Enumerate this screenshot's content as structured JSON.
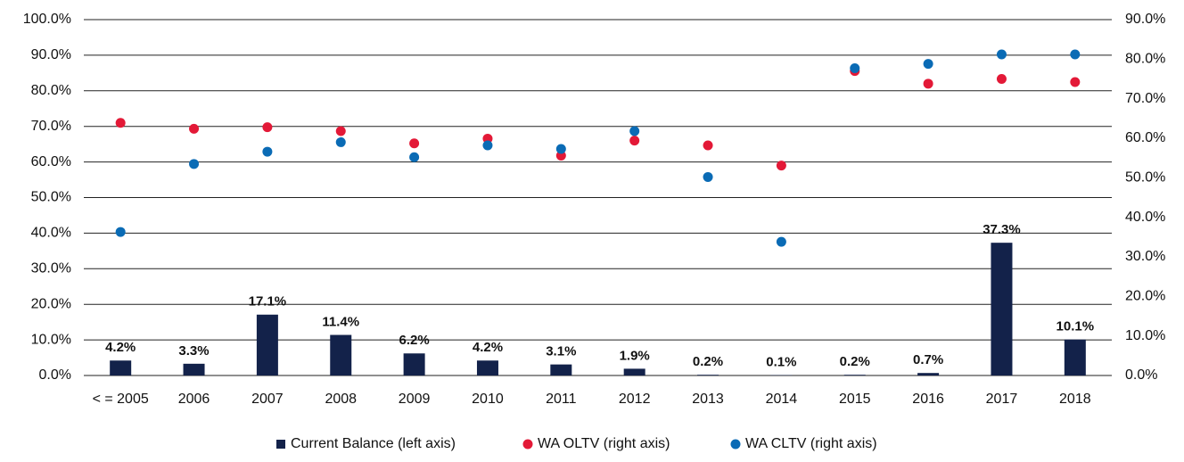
{
  "chart_data": {
    "type": "bar_scatter",
    "categories": [
      "< = 2005",
      "2006",
      "2007",
      "2008",
      "2009",
      "2010",
      "2011",
      "2012",
      "2013",
      "2014",
      "2015",
      "2016",
      "2017",
      "2018"
    ],
    "series": [
      {
        "name": "Current Balance (left axis)",
        "type": "bar",
        "color": "#13224a",
        "values": [
          4.2,
          3.3,
          17.1,
          11.4,
          6.2,
          4.2,
          3.1,
          1.9,
          0.2,
          0.1,
          0.2,
          0.7,
          37.3,
          10.1
        ],
        "value_labels": [
          "4.2%",
          "3.3%",
          "17.1%",
          "11.4%",
          "6.2%",
          "4.2%",
          "3.1%",
          "1.9%",
          "0.2%",
          "0.1%",
          "0.2%",
          "0.7%",
          "37.3%",
          "10.1%"
        ]
      },
      {
        "name": "WA OLTV (right axis)",
        "type": "scatter",
        "axis": "y2",
        "color": "#e31937",
        "values": [
          63.9,
          62.4,
          62.8,
          61.8,
          58.7,
          59.9,
          55.6,
          59.4,
          58.2,
          53.1,
          77.0,
          73.8,
          75.0,
          74.2
        ]
      },
      {
        "name": "WA CLTV (right axis)",
        "type": "scatter",
        "axis": "y2",
        "color": "#0a6bb5",
        "values": [
          36.3,
          53.5,
          56.6,
          59.0,
          55.2,
          58.2,
          57.3,
          61.8,
          50.2,
          33.8,
          77.7,
          78.8,
          81.2,
          81.2
        ]
      }
    ],
    "ylim": [
      0,
      100
    ],
    "yticks": [
      {
        "value": 0,
        "label": "0.0%"
      },
      {
        "value": 10,
        "label": "10.0%"
      },
      {
        "value": 20,
        "label": "20.0%"
      },
      {
        "value": 30,
        "label": "30.0%"
      },
      {
        "value": 40,
        "label": "40.0%"
      },
      {
        "value": 50,
        "label": "50.0%"
      },
      {
        "value": 60,
        "label": "60.0%"
      },
      {
        "value": 70,
        "label": "70.0%"
      },
      {
        "value": 80,
        "label": "80.0%"
      },
      {
        "value": 90,
        "label": "90.0%"
      },
      {
        "value": 100,
        "label": "100.0%"
      }
    ],
    "y2lim": [
      0,
      90
    ],
    "y2ticks": [
      {
        "value": 0,
        "label": "0.0%"
      },
      {
        "value": 10,
        "label": "10.0%"
      },
      {
        "value": 20,
        "label": "20.0%"
      },
      {
        "value": 30,
        "label": "30.0%"
      },
      {
        "value": 40,
        "label": "40.0%"
      },
      {
        "value": 50,
        "label": "50.0%"
      },
      {
        "value": 60,
        "label": "60.0%"
      },
      {
        "value": 70,
        "label": "70.0%"
      },
      {
        "value": 80,
        "label": "80.0%"
      },
      {
        "value": 90,
        "label": "90.0%"
      }
    ],
    "grid": true,
    "legend": "bottom"
  }
}
